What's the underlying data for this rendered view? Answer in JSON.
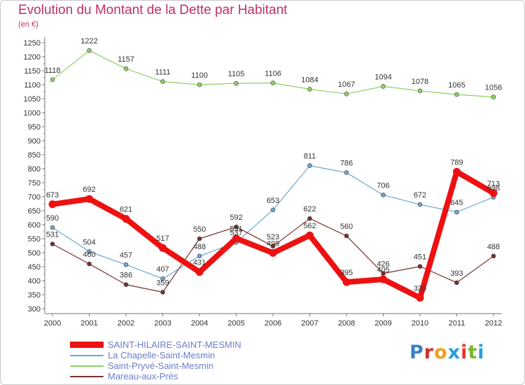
{
  "title": "Evolution du Montant de la Dette par Habitant",
  "subtitle": "(en €)",
  "logo": {
    "letters": [
      "P",
      "r",
      "o",
      "x",
      "i",
      "t",
      "i"
    ],
    "colors": [
      "#3a7fd0",
      "#d12e2e",
      "#f0a020",
      "#2a9fd8",
      "#e5352e",
      "#7ab82e",
      "#2a9fd8"
    ]
  },
  "chart_data": {
    "type": "line",
    "title": "Evolution du Montant de la Dette par Habitant",
    "ylabel": "(en €)",
    "ylim": [
      300,
      1250
    ],
    "yticks": [
      300,
      350,
      400,
      450,
      500,
      550,
      600,
      650,
      700,
      750,
      800,
      850,
      900,
      950,
      1000,
      1050,
      1100,
      1150,
      1200,
      1250
    ],
    "x": [
      "2000",
      "2001",
      "2002",
      "2003",
      "2004",
      "2005",
      "2006",
      "2007",
      "2008",
      "2009",
      "2010",
      "2011",
      "2012"
    ],
    "grid": false,
    "legend_position": "bottom-left",
    "series": [
      {
        "name": "SAINT-HILAIRE-SAINT-MESMIN",
        "color": "#ee1111",
        "width": 8,
        "values": [
          673,
          692,
          621,
          517,
          431,
          551,
          499,
          562,
          395,
          405,
          339,
          789,
          713
        ]
      },
      {
        "name": "La Chapelle-Saint-Mesmin",
        "color": "#6fa4d0",
        "width": 1.2,
        "values": [
          590,
          504,
          457,
          407,
          488,
          537,
          653,
          811,
          786,
          706,
          672,
          645,
          698
        ]
      },
      {
        "name": "Saint-Pryvé-Saint-Mesmin",
        "color": "#8ed065",
        "width": 1.2,
        "values": [
          1118,
          1222,
          1157,
          1111,
          1100,
          1105,
          1106,
          1084,
          1067,
          1094,
          1078,
          1065,
          1056
        ]
      },
      {
        "name": "Mareau-aux-Prés",
        "color": "#7a2f2f",
        "width": 1.2,
        "values": [
          531,
          460,
          386,
          359,
          550,
          592,
          523,
          622,
          560,
          426,
          451,
          393,
          488
        ]
      }
    ]
  },
  "legend": [
    {
      "label": "SAINT-HILAIRE-SAINT-MESMIN",
      "color": "#ee1111",
      "thickness": 9
    },
    {
      "label": "La Chapelle-Saint-Mesmin",
      "color": "#6fa4d0",
      "thickness": 2
    },
    {
      "label": "Saint-Pryvé-Saint-Mesmin",
      "color": "#8ed065",
      "thickness": 2
    },
    {
      "label": "Mareau-aux-Prés",
      "color": "#7a2f2f",
      "thickness": 2
    }
  ]
}
